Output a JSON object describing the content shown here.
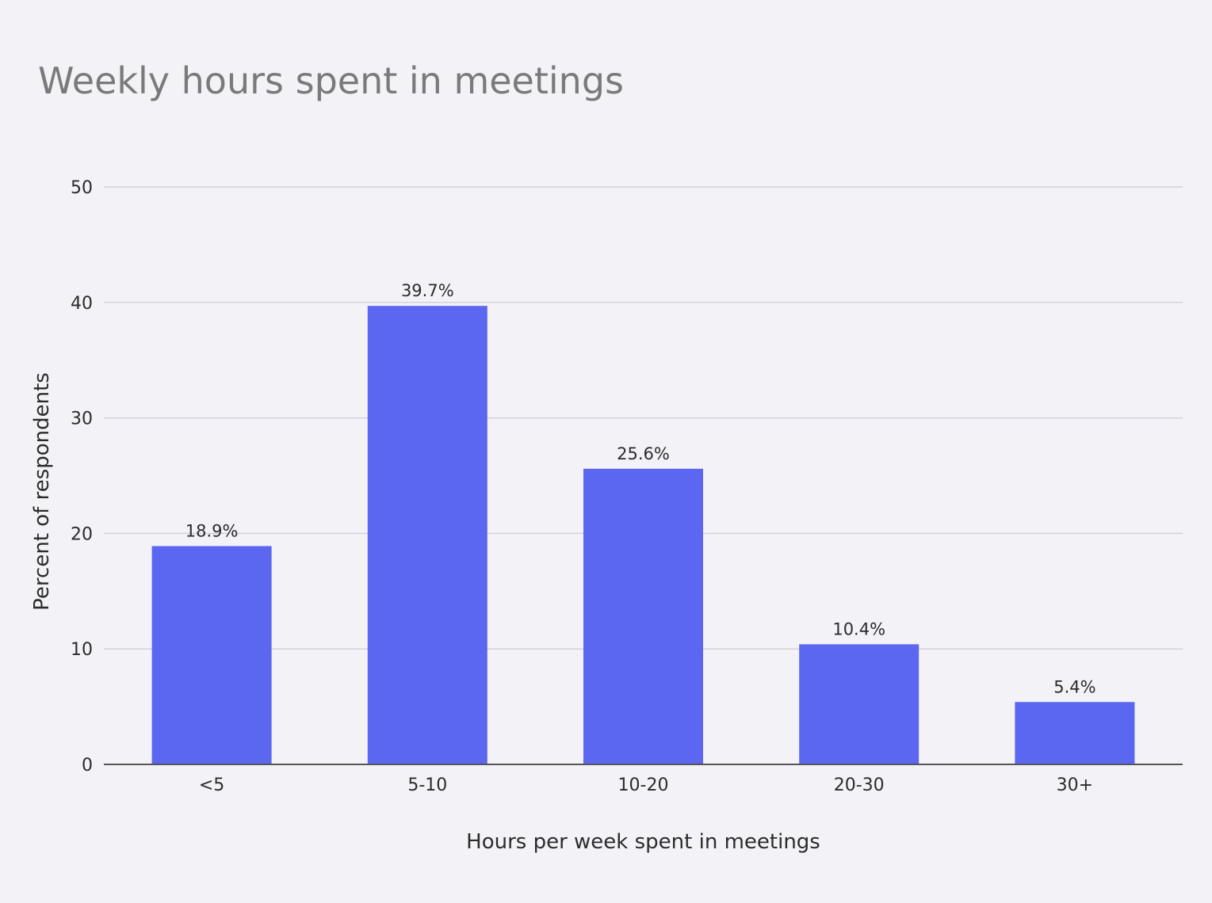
{
  "chart_data": {
    "type": "bar",
    "title": "Weekly hours spent in meetings",
    "xlabel": "Hours per week spent in meetings",
    "ylabel": "Percent of respondents",
    "categories": [
      "<5",
      "5-10",
      "10-20",
      "20-30",
      "30+"
    ],
    "values": [
      18.9,
      39.7,
      25.6,
      10.4,
      5.4
    ],
    "data_labels": [
      "18.9%",
      "39.7%",
      "25.6%",
      "10.4%",
      "5.4%"
    ],
    "ylim": [
      0,
      50
    ],
    "yticks": [
      0,
      10,
      20,
      30,
      40,
      50
    ],
    "grid": true,
    "legend": "none"
  },
  "colors": {
    "background": "#f3f2f7",
    "bar": "#5b67f0",
    "grid": "#d3d1da",
    "axis": "#555555",
    "title": "#7a7a7a",
    "text": "#2b2b2b"
  }
}
